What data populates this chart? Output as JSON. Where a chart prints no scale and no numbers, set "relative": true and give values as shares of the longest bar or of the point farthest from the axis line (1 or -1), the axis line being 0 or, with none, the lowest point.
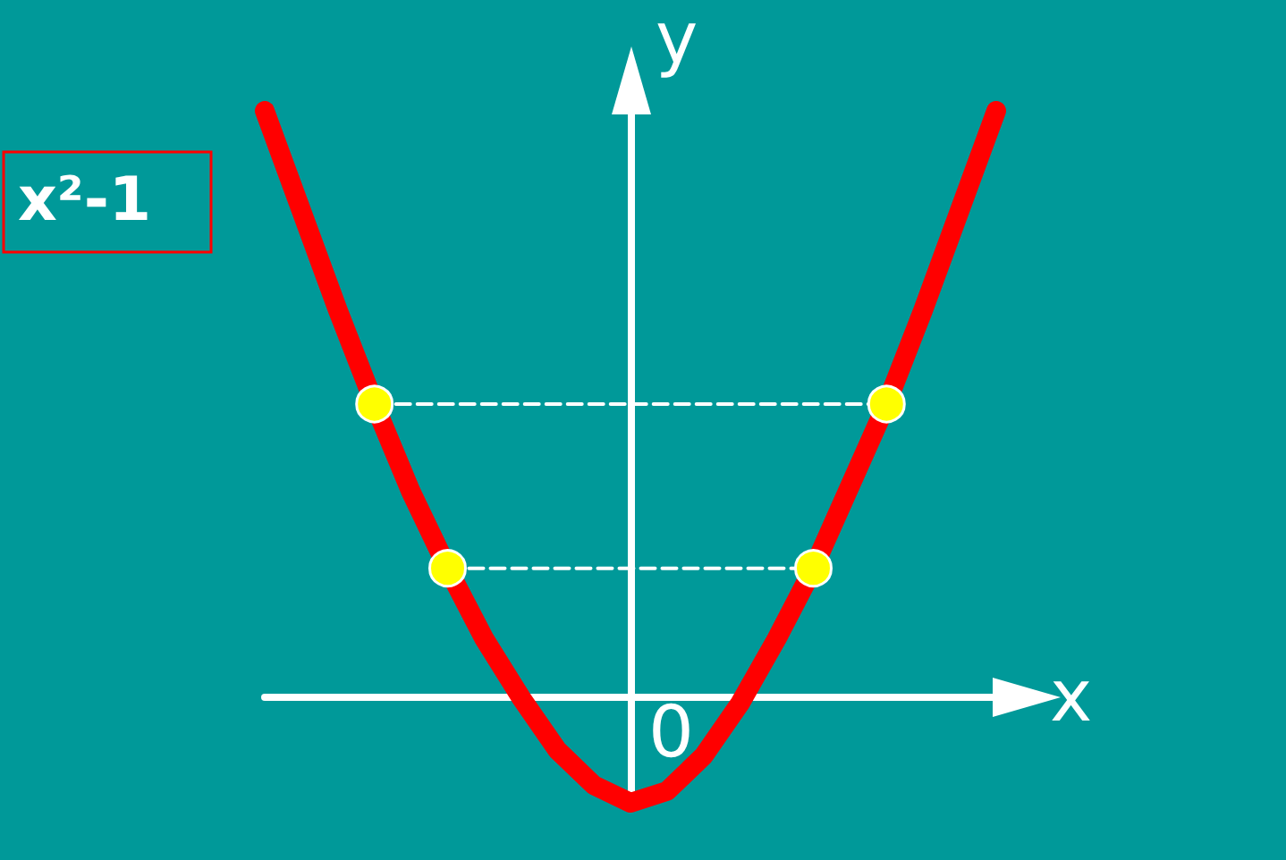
{
  "chart_data": {
    "type": "line",
    "relative": true,
    "title": "x²-1",
    "xlabel": "x",
    "ylabel": "y",
    "annotations": [
      "0"
    ],
    "categories": [
      null,
      null,
      null,
      null,
      null,
      null,
      null,
      null,
      null,
      null,
      null,
      null,
      null,
      null,
      null,
      null,
      null,
      null,
      null,
      null,
      null
    ],
    "series": [
      {
        "color": "#ff0000",
        "values": [
          1.0,
          0.83,
          0.66,
          0.5,
          0.35,
          0.22,
          0.1,
          0.0,
          -0.09,
          -0.15,
          -0.18,
          -0.16,
          -0.1,
          -0.01,
          0.1,
          0.22,
          0.36,
          0.5,
          0.66,
          0.83,
          1.0
        ]
      },
      {
        "color": "#ffffff",
        "line_style": "dashed",
        "values": [
          null,
          null,
          null,
          0.5,
          0.5,
          0.5,
          0.5,
          0.5,
          0.5,
          0.5,
          0.5,
          0.5,
          0.5,
          0.5,
          0.5,
          0.5,
          0.5,
          0.5,
          null,
          null,
          null
        ],
        "colors": [
          null,
          null,
          null,
          "#ffff00",
          null,
          null,
          null,
          null,
          null,
          null,
          null,
          null,
          null,
          null,
          null,
          null,
          null,
          "#ffff00",
          null,
          null,
          null
        ]
      },
      {
        "color": "#ffffff",
        "line_style": "dashed",
        "values": [
          null,
          null,
          null,
          null,
          null,
          0.22,
          0.22,
          0.22,
          0.22,
          0.22,
          0.22,
          0.22,
          0.22,
          0.22,
          0.22,
          0.22,
          null,
          null,
          null,
          null,
          null
        ],
        "colors": [
          null,
          null,
          null,
          null,
          null,
          "#ffff00",
          null,
          null,
          null,
          null,
          null,
          null,
          null,
          null,
          null,
          "#ffff00",
          null,
          null,
          null,
          null,
          null
        ]
      }
    ],
    "grid": false
  }
}
